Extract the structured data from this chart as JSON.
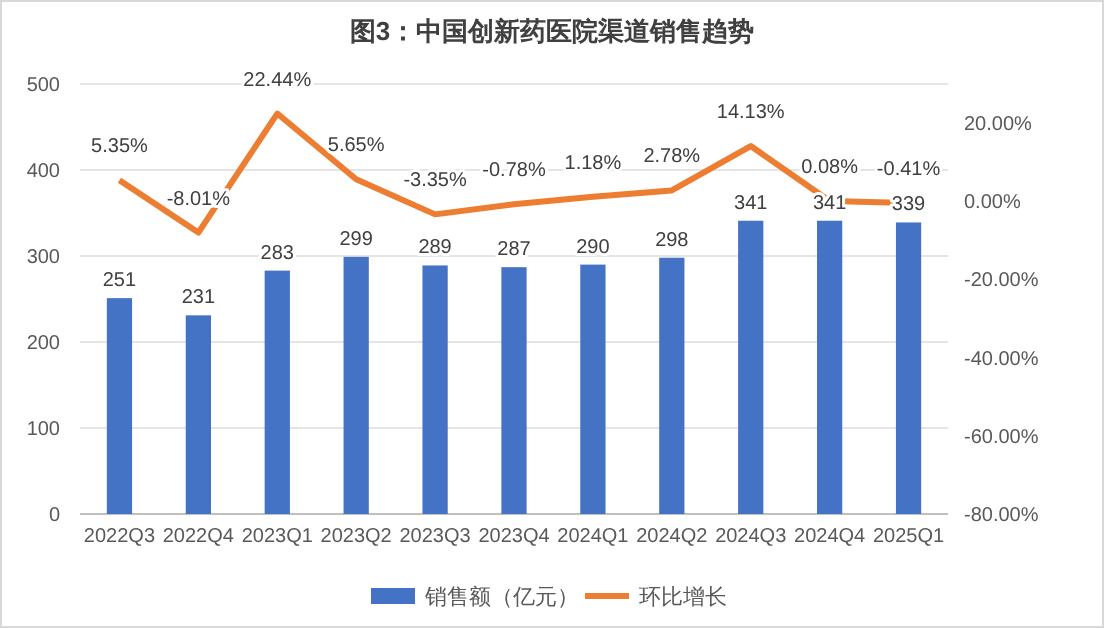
{
  "chart_data": {
    "type": "bar",
    "title": "图3：中国创新药医院渠道销售趋势",
    "categories": [
      "2022Q3",
      "2022Q4",
      "2023Q1",
      "2023Q2",
      "2023Q3",
      "2023Q4",
      "2024Q1",
      "2024Q2",
      "2024Q3",
      "2024Q4",
      "2025Q1"
    ],
    "series": [
      {
        "name": "销售额（亿元）",
        "color": "#4472c4",
        "values": [
          251,
          231,
          283,
          299,
          289,
          287,
          290,
          298,
          341,
          341,
          339
        ],
        "value_labels": [
          "251",
          "231",
          "283",
          "299",
          "289",
          "287",
          "290",
          "298",
          "341",
          "341",
          "339"
        ]
      },
      {
        "name": "环比增长",
        "color": "#ed7d31",
        "type": "line",
        "axis": "y2",
        "values": [
          5.35,
          -8.01,
          22.44,
          5.65,
          -3.35,
          -0.78,
          1.18,
          2.78,
          14.13,
          0.08,
          -0.41
        ],
        "value_labels": [
          "5.35%",
          "-8.01%",
          "22.44%",
          "5.65%",
          "-3.35%",
          "-0.78%",
          "1.18%",
          "2.78%",
          "14.13%",
          "0.08%",
          "-0.41%"
        ]
      }
    ],
    "ylim": [
      0,
      500
    ],
    "yticks": [
      0,
      100,
      200,
      300,
      400,
      500
    ],
    "y2lim": [
      -80,
      30
    ],
    "y2ticks": [
      {
        "value": -80,
        "label": "-80.00%"
      },
      {
        "value": -60,
        "label": "-60.00%"
      },
      {
        "value": -40,
        "label": "-40.00%"
      },
      {
        "value": -20,
        "label": "-20.00%"
      },
      {
        "value": 0,
        "label": "0.00%"
      },
      {
        "value": 20,
        "label": "20.00%"
      }
    ],
    "grid": "y",
    "legend": "bottom",
    "marker": "none",
    "line_style": "solid"
  }
}
